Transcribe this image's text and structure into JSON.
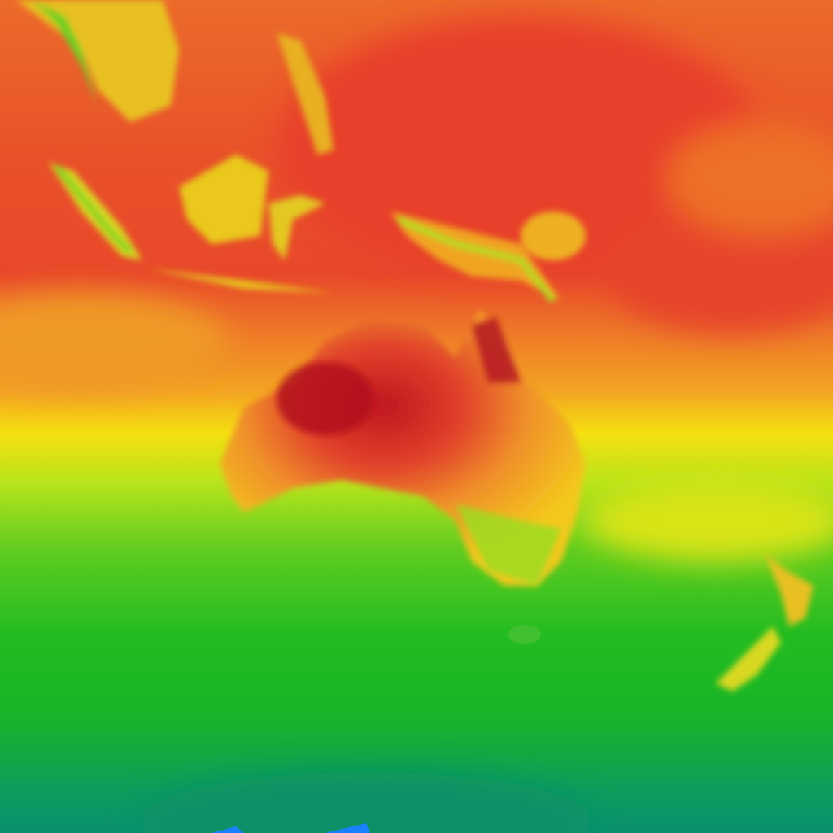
{
  "map": {
    "colors": {
      "hot_dark": "#b0101c",
      "hot": "#e8402a",
      "warm": "#ee7428",
      "mild": "#f5a820",
      "yellow": "#f6e40c",
      "yellow_green": "#b4e41c",
      "green": "#3cc020",
      "deep_green": "#18b424",
      "teal": "#0c9470",
      "cold_blue": "#1a80ff"
    }
  }
}
